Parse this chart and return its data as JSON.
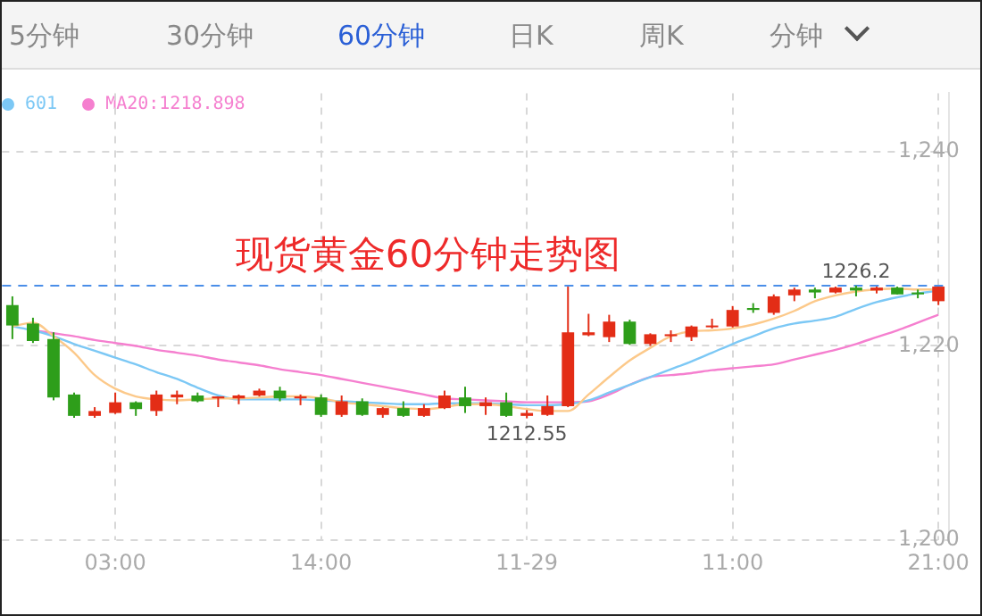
{
  "chart_data": {
    "type": "candlestick",
    "title": "现货黄金60分钟走势图",
    "categories": [
      null,
      null,
      null,
      null,
      null,
      "03:00",
      null,
      null,
      null,
      null,
      null,
      null,
      null,
      null,
      null,
      "14:00",
      null,
      null,
      null,
      null,
      null,
      null,
      null,
      null,
      null,
      "11-29",
      null,
      null,
      null,
      null,
      null,
      null,
      null,
      null,
      null,
      "11:00",
      null,
      null,
      null,
      null,
      null,
      null,
      null,
      null,
      null,
      "21:00"
    ],
    "ohlc": [
      [
        1224.2,
        1225.1,
        1220.7,
        1222.1
      ],
      [
        1222.3,
        1222.9,
        1220.3,
        1220.5
      ],
      [
        1220.7,
        1221.4,
        1214.4,
        1214.7
      ],
      [
        1215.0,
        1215.2,
        1212.6,
        1212.8
      ],
      [
        1212.8,
        1213.7,
        1212.6,
        1213.3
      ],
      [
        1213.1,
        1215.2,
        1213.0,
        1214.2
      ],
      [
        1214.2,
        1214.3,
        1212.8,
        1213.5
      ],
      [
        1213.3,
        1215.4,
        1212.8,
        1215.0
      ],
      [
        1214.7,
        1215.4,
        1214.0,
        1215.0
      ],
      [
        1214.9,
        1215.2,
        1214.2,
        1214.3
      ],
      [
        1214.6,
        1214.8,
        1213.7,
        1214.8
      ],
      [
        1214.6,
        1215.0,
        1214.0,
        1214.9
      ],
      [
        1214.9,
        1215.6,
        1214.8,
        1215.4
      ],
      [
        1215.4,
        1215.8,
        1214.3,
        1214.6
      ],
      [
        1214.6,
        1215.0,
        1213.9,
        1214.8
      ],
      [
        1214.7,
        1215.0,
        1212.7,
        1212.9
      ],
      [
        1212.9,
        1214.9,
        1212.7,
        1214.3
      ],
      [
        1214.3,
        1214.6,
        1212.8,
        1212.9
      ],
      [
        1212.9,
        1213.7,
        1212.6,
        1213.6
      ],
      [
        1213.6,
        1214.3,
        1212.7,
        1212.8
      ],
      [
        1212.8,
        1214.0,
        1212.7,
        1213.6
      ],
      [
        1213.6,
        1215.4,
        1213.5,
        1214.9
      ],
      [
        1214.7,
        1215.8,
        1213.1,
        1213.8
      ],
      [
        1213.8,
        1214.7,
        1212.9,
        1214.2
      ],
      [
        1214.2,
        1215.2,
        1212.7,
        1212.8
      ],
      [
        1212.8,
        1213.4,
        1212.55,
        1213.1
      ],
      [
        1212.9,
        1214.9,
        1212.8,
        1213.8
      ],
      [
        1213.8,
        1226.1,
        1213.7,
        1221.4
      ],
      [
        1221.1,
        1223.3,
        1221.0,
        1221.4
      ],
      [
        1220.9,
        1223.2,
        1220.4,
        1222.5
      ],
      [
        1222.5,
        1222.7,
        1220.1,
        1220.2
      ],
      [
        1220.2,
        1221.3,
        1220.0,
        1221.2
      ],
      [
        1221.0,
        1221.6,
        1220.4,
        1221.2
      ],
      [
        1220.9,
        1222.1,
        1220.5,
        1222.0
      ],
      [
        1222.0,
        1222.8,
        1221.8,
        1222.1
      ],
      [
        1222.0,
        1224.1,
        1221.9,
        1223.7
      ],
      [
        1223.9,
        1224.4,
        1223.4,
        1223.7
      ],
      [
        1223.4,
        1225.3,
        1223.2,
        1225.1
      ],
      [
        1225.2,
        1226.0,
        1224.6,
        1225.8
      ],
      [
        1225.8,
        1226.0,
        1224.9,
        1225.5
      ],
      [
        1225.5,
        1226.1,
        1225.4,
        1226.0
      ],
      [
        1226.0,
        1226.2,
        1225.1,
        1225.7
      ],
      [
        1225.7,
        1226.1,
        1225.4,
        1226.0
      ],
      [
        1226.0,
        1226.1,
        1225.3,
        1225.3
      ],
      [
        1225.5,
        1225.8,
        1224.9,
        1225.3
      ],
      [
        1224.6,
        1226.1,
        1224.2,
        1226.1
      ]
    ],
    "colors": [
      "#2e9e1a",
      "#2e9e1a",
      "#2e9e1a",
      "#2e9e1a",
      "#e32d16",
      "#e32d16",
      "#2e9e1a",
      "#e32d16",
      "#e32d16",
      "#2e9e1a",
      "#e32d16",
      "#e32d16",
      "#e32d16",
      "#2e9e1a",
      "#e32d16",
      "#2e9e1a",
      "#e32d16",
      "#2e9e1a",
      "#e32d16",
      "#2e9e1a",
      "#e32d16",
      "#e32d16",
      "#2e9e1a",
      "#e32d16",
      "#2e9e1a",
      "#e32d16",
      "#e32d16",
      "#e32d16",
      "#e32d16",
      "#e32d16",
      "#2e9e1a",
      "#e32d16",
      "#e32d16",
      "#e32d16",
      "#e32d16",
      "#e32d16",
      "#2e9e1a",
      "#e32d16",
      "#e32d16",
      "#2e9e1a",
      "#e32d16",
      "#2e9e1a",
      "#e32d16",
      "#2e9e1a",
      "#2e9e1a",
      "#e32d16"
    ],
    "series": [
      {
        "type": "line",
        "color": "#fcc98a",
        "values": [
          1222.0,
          1222.4,
          1221.0,
          1219.3,
          1217.0,
          1215.6,
          1214.8,
          1214.5,
          1214.4,
          1214.5,
          1214.6,
          1214.6,
          1214.7,
          1214.8,
          1214.8,
          1214.6,
          1214.2,
          1214.0,
          1213.8,
          1213.6,
          1213.5,
          1213.7,
          1214.0,
          1214.0,
          1213.8,
          1213.5,
          1213.3,
          1213.3,
          1215.0,
          1216.8,
          1218.5,
          1219.8,
          1221.0,
          1221.5,
          1221.6,
          1221.8,
          1222.2,
          1222.8,
          1223.6,
          1224.6,
          1225.2,
          1225.6,
          1225.8,
          1225.9,
          1225.8,
          1225.8
        ]
      },
      {
        "type": "line",
        "name": "601",
        "color": "#7cc8f5",
        "values": [
          1222.0,
          1221.6,
          1221.0,
          1220.2,
          1219.5,
          1218.8,
          1218.1,
          1217.3,
          1216.6,
          1215.7,
          1214.9,
          1214.5,
          1214.5,
          1214.5,
          1214.5,
          1214.4,
          1214.3,
          1214.2,
          1214.1,
          1214.0,
          1214.0,
          1214.1,
          1214.1,
          1214.1,
          1214.0,
          1213.9,
          1213.9,
          1214.0,
          1214.4,
          1215.2,
          1216.0,
          1216.8,
          1217.6,
          1218.4,
          1219.3,
          1220.2,
          1221.0,
          1221.8,
          1222.3,
          1222.6,
          1223.0,
          1223.8,
          1224.5,
          1225.0,
          1225.4,
          1225.7
        ]
      },
      {
        "type": "line",
        "name": "MA20:1218.898",
        "color": "#f57fcf",
        "values": [
          null,
          1221.6,
          1221.3,
          1221.0,
          1220.6,
          1220.3,
          1220.0,
          1219.6,
          1219.3,
          1219.0,
          1218.6,
          1218.3,
          1218.0,
          1217.6,
          1217.3,
          1217.0,
          1216.6,
          1216.2,
          1215.8,
          1215.4,
          1215.0,
          1214.6,
          1214.5,
          1214.4,
          1214.3,
          1214.2,
          1214.2,
          1214.2,
          1214.3,
          1215.0,
          1216.0,
          1216.8,
          1217.0,
          1217.2,
          1217.5,
          1217.7,
          1217.9,
          1218.1,
          1218.6,
          1219.1,
          1219.6,
          1220.2,
          1220.9,
          1221.6,
          1222.4,
          1223.2
        ]
      }
    ],
    "ylim": [
      1200,
      1246
    ],
    "yticks": [
      {
        "value": 1200,
        "label": "1,200"
      },
      {
        "value": 1220,
        "label": "1,220"
      },
      {
        "value": 1240,
        "label": "1,240"
      }
    ],
    "ref_lines": [
      {
        "axis": "y",
        "value": 1226.2,
        "color": "#4a8ee8",
        "line_style": "dashed"
      }
    ],
    "annotations": [
      "5分钟",
      "30分钟",
      "60分钟",
      "日K",
      "周K",
      "分钟",
      {
        "text": "1226.2",
        "y": 1226.2
      },
      {
        "text": "1212.55",
        "y": 1212.55
      }
    ],
    "grid": true,
    "legend": "top left",
    "marker": "none"
  }
}
